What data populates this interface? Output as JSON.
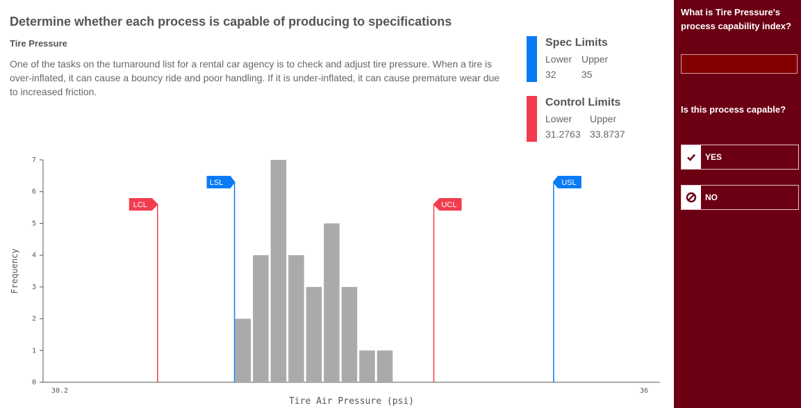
{
  "page": {
    "title": "Determine whether each process is capable of producing to specifications",
    "subtitle": "Tire Pressure",
    "description": "One of the tasks on the turnaround list for a rental car agency is to check and adjust tire pressure. When a tire is over-inflated, it can cause a bouncy ride and poor handling. If it is under-inflated, it can cause premature wear due to increased friction."
  },
  "spec_limits": {
    "heading": "Spec Limits",
    "lower_label": "Lower",
    "upper_label": "Upper",
    "lower": "32",
    "upper": "35",
    "color": "#0a7bf5"
  },
  "control_limits": {
    "heading": "Control Limits",
    "lower_label": "Lower",
    "upper_label": "Upper",
    "lower": "31.2763",
    "upper": "33.8737",
    "color": "#f23d4f"
  },
  "sidebar": {
    "question1": "What is Tire Pressure's process capability index?",
    "answer_value": "",
    "question2": "Is this process capable?",
    "yes_label": "YES",
    "no_label": "NO",
    "background": "#6b0013"
  },
  "chart_data": {
    "type": "bar",
    "title": "",
    "xlabel": "Tire Air Pressure (psi)",
    "ylabel": "Frequency",
    "xlim": [
      30.2,
      36
    ],
    "ylim": [
      0,
      7
    ],
    "x_tick_labels": [
      "30.2",
      "36"
    ],
    "y_ticks": [
      0,
      1,
      2,
      3,
      4,
      5,
      6,
      7
    ],
    "bin_width": 0.1667,
    "bins": [
      {
        "start": 32.0,
        "count": 2
      },
      {
        "start": 32.1667,
        "count": 4
      },
      {
        "start": 32.3333,
        "count": 7
      },
      {
        "start": 32.5,
        "count": 4
      },
      {
        "start": 32.6667,
        "count": 3
      },
      {
        "start": 32.8333,
        "count": 5
      },
      {
        "start": 33.0,
        "count": 3
      },
      {
        "start": 33.1667,
        "count": 1
      },
      {
        "start": 33.3333,
        "count": 1
      }
    ],
    "markers": [
      {
        "label": "LCL",
        "value": 31.2763,
        "kind": "control"
      },
      {
        "label": "LSL",
        "value": 32.0,
        "kind": "spec"
      },
      {
        "label": "UCL",
        "value": 33.8737,
        "kind": "control"
      },
      {
        "label": "USL",
        "value": 35.0,
        "kind": "spec"
      }
    ]
  }
}
